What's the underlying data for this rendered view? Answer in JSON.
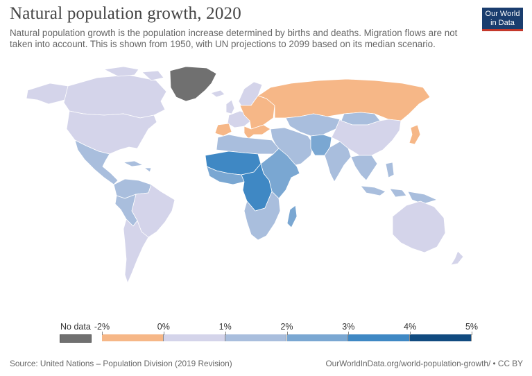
{
  "header": {
    "title": "Natural population growth, 2020",
    "subtitle": "Natural population growth is the population increase determined by births and deaths. Migration flows are not taken into account. This is shown from 1950, with UN projections to 2099 based on its median scenario.",
    "logo_line1": "Our World",
    "logo_line2": "in Data"
  },
  "colors": {
    "no_data": "#707070",
    "neg": "#f6b787",
    "c0_1": "#d4d4ea",
    "c1_2": "#a9bedd",
    "c2_3": "#7aa7d2",
    "c3_4": "#3f88c4",
    "c4_5": "#114b80",
    "ocean": "#ffffff"
  },
  "legend": {
    "no_data_label": "No data",
    "tick_labels": [
      "-2%",
      "0%",
      "1%",
      "2%",
      "3%",
      "4%",
      "5%"
    ],
    "bins": [
      {
        "from": -2,
        "to": 0,
        "color": "#f6b787"
      },
      {
        "from": 0,
        "to": 1,
        "color": "#d4d4ea"
      },
      {
        "from": 1,
        "to": 2,
        "color": "#a9bedd"
      },
      {
        "from": 2,
        "to": 3,
        "color": "#7aa7d2"
      },
      {
        "from": 3,
        "to": 4,
        "color": "#3f88c4"
      },
      {
        "from": 4,
        "to": 5,
        "color": "#114b80"
      }
    ]
  },
  "footer": {
    "source": "Source: United Nations – Population Division (2019 Revision)",
    "url": "OurWorldInData.org/world-population-growth/ • CC BY"
  }
}
